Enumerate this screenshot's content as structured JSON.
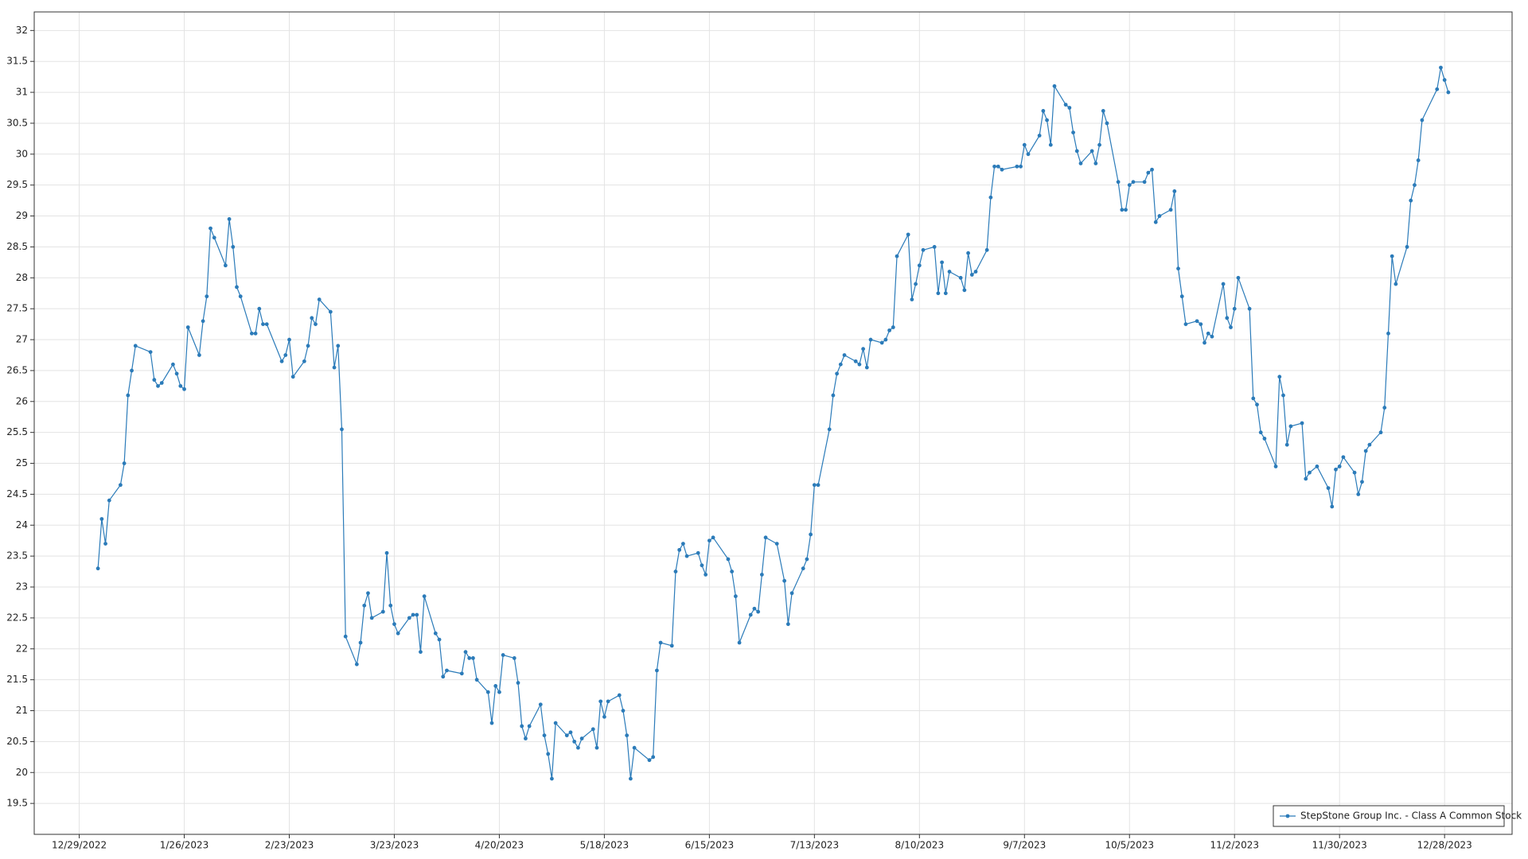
{
  "chart_data": {
    "type": "line",
    "x": [
      "1/3/2023",
      "1/4/2023",
      "1/5/2023",
      "1/6/2023",
      "1/9/2023",
      "1/10/2023",
      "1/11/2023",
      "1/12/2023",
      "1/13/2023",
      "1/17/2023",
      "1/18/2023",
      "1/19/2023",
      "1/20/2023",
      "1/23/2023",
      "1/24/2023",
      "1/25/2023",
      "1/26/2023",
      "1/27/2023",
      "1/30/2023",
      "1/31/2023",
      "2/1/2023",
      "2/2/2023",
      "2/3/2023",
      "2/6/2023",
      "2/7/2023",
      "2/8/2023",
      "2/9/2023",
      "2/10/2023",
      "2/13/2023",
      "2/14/2023",
      "2/15/2023",
      "2/16/2023",
      "2/17/2023",
      "2/21/2023",
      "2/22/2023",
      "2/23/2023",
      "2/24/2023",
      "2/27/2023",
      "2/28/2023",
      "3/1/2023",
      "3/2/2023",
      "3/3/2023",
      "3/6/2023",
      "3/7/2023",
      "3/8/2023",
      "3/9/2023",
      "3/10/2023",
      "3/13/2023",
      "3/14/2023",
      "3/15/2023",
      "3/16/2023",
      "3/17/2023",
      "3/20/2023",
      "3/21/2023",
      "3/22/2023",
      "3/23/2023",
      "3/24/2023",
      "3/27/2023",
      "3/28/2023",
      "3/29/2023",
      "3/30/2023",
      "3/31/2023",
      "4/3/2023",
      "4/4/2023",
      "4/5/2023",
      "4/6/2023",
      "4/10/2023",
      "4/11/2023",
      "4/12/2023",
      "4/13/2023",
      "4/14/2023",
      "4/17/2023",
      "4/18/2023",
      "4/19/2023",
      "4/20/2023",
      "4/21/2023",
      "4/24/2023",
      "4/25/2023",
      "4/26/2023",
      "4/27/2023",
      "4/28/2023",
      "5/1/2023",
      "5/2/2023",
      "5/3/2023",
      "5/4/2023",
      "5/5/2023",
      "5/8/2023",
      "5/9/2023",
      "5/10/2023",
      "5/11/2023",
      "5/12/2023",
      "5/15/2023",
      "5/16/2023",
      "5/17/2023",
      "5/18/2023",
      "5/19/2023",
      "5/22/2023",
      "5/23/2023",
      "5/24/2023",
      "5/25/2023",
      "5/26/2023",
      "5/30/2023",
      "5/31/2023",
      "6/1/2023",
      "6/2/2023",
      "6/5/2023",
      "6/6/2023",
      "6/7/2023",
      "6/8/2023",
      "6/9/2023",
      "6/12/2023",
      "6/13/2023",
      "6/14/2023",
      "6/15/2023",
      "6/16/2023",
      "6/20/2023",
      "6/21/2023",
      "6/22/2023",
      "6/23/2023",
      "6/26/2023",
      "6/27/2023",
      "6/28/2023",
      "6/29/2023",
      "6/30/2023",
      "7/3/2023",
      "7/5/2023",
      "7/6/2023",
      "7/7/2023",
      "7/10/2023",
      "7/11/2023",
      "7/12/2023",
      "7/13/2023",
      "7/14/2023",
      "7/17/2023",
      "7/18/2023",
      "7/19/2023",
      "7/20/2023",
      "7/21/2023",
      "7/24/2023",
      "7/25/2023",
      "7/26/2023",
      "7/27/2023",
      "7/28/2023",
      "7/31/2023",
      "8/1/2023",
      "8/2/2023",
      "8/3/2023",
      "8/4/2023",
      "8/7/2023",
      "8/8/2023",
      "8/9/2023",
      "8/10/2023",
      "8/11/2023",
      "8/14/2023",
      "8/15/2023",
      "8/16/2023",
      "8/17/2023",
      "8/18/2023",
      "8/21/2023",
      "8/22/2023",
      "8/23/2023",
      "8/24/2023",
      "8/25/2023",
      "8/28/2023",
      "8/29/2023",
      "8/30/2023",
      "8/31/2023",
      "9/1/2023",
      "9/5/2023",
      "9/6/2023",
      "9/7/2023",
      "9/8/2023",
      "9/11/2023",
      "9/12/2023",
      "9/13/2023",
      "9/14/2023",
      "9/15/2023",
      "9/18/2023",
      "9/19/2023",
      "9/20/2023",
      "9/21/2023",
      "9/22/2023",
      "9/25/2023",
      "9/26/2023",
      "9/27/2023",
      "9/28/2023",
      "9/29/2023",
      "10/2/2023",
      "10/3/2023",
      "10/4/2023",
      "10/5/2023",
      "10/6/2023",
      "10/9/2023",
      "10/10/2023",
      "10/11/2023",
      "10/12/2023",
      "10/13/2023",
      "10/16/2023",
      "10/17/2023",
      "10/18/2023",
      "10/19/2023",
      "10/20/2023",
      "10/23/2023",
      "10/24/2023",
      "10/25/2023",
      "10/26/2023",
      "10/27/2023",
      "10/30/2023",
      "10/31/2023",
      "11/1/2023",
      "11/2/2023",
      "11/3/2023",
      "11/6/2023",
      "11/7/2023",
      "11/8/2023",
      "11/9/2023",
      "11/10/2023",
      "11/13/2023",
      "11/14/2023",
      "11/15/2023",
      "11/16/2023",
      "11/17/2023",
      "11/20/2023",
      "11/21/2023",
      "11/22/2023",
      "11/24/2023",
      "11/27/2023",
      "11/28/2023",
      "11/29/2023",
      "11/30/2023",
      "12/1/2023",
      "12/4/2023",
      "12/5/2023",
      "12/6/2023",
      "12/7/2023",
      "12/8/2023",
      "12/11/2023",
      "12/12/2023",
      "12/13/2023",
      "12/14/2023",
      "12/15/2023",
      "12/18/2023",
      "12/19/2023",
      "12/20/2023",
      "12/21/2023",
      "12/22/2023",
      "12/26/2023",
      "12/27/2023",
      "12/28/2023",
      "12/29/2023"
    ],
    "series": [
      {
        "name": "StepStone Group Inc. - Class A Common Stock",
        "color": "#2b7bb9",
        "values": [
          23.3,
          24.1,
          23.7,
          24.4,
          24.65,
          25.0,
          26.1,
          26.5,
          26.9,
          26.8,
          26.35,
          26.25,
          26.3,
          26.6,
          26.45,
          26.25,
          26.2,
          27.2,
          26.75,
          27.3,
          27.7,
          28.8,
          28.65,
          28.2,
          28.95,
          28.5,
          27.85,
          27.7,
          27.1,
          27.1,
          27.5,
          27.25,
          27.25,
          26.65,
          26.75,
          27.0,
          26.4,
          26.65,
          26.9,
          27.35,
          27.25,
          27.65,
          27.45,
          26.55,
          26.9,
          25.55,
          22.2,
          21.75,
          22.1,
          22.7,
          22.9,
          22.5,
          22.6,
          23.55,
          22.7,
          22.4,
          22.25,
          22.5,
          22.55,
          22.55,
          21.95,
          22.85,
          22.25,
          22.15,
          21.55,
          21.65,
          21.6,
          21.95,
          21.85,
          21.85,
          21.5,
          21.3,
          20.8,
          21.4,
          21.3,
          21.9,
          21.85,
          21.45,
          20.75,
          20.55,
          20.75,
          21.1,
          20.6,
          20.3,
          19.9,
          20.8,
          20.6,
          20.65,
          20.5,
          20.4,
          20.55,
          20.7,
          20.4,
          21.15,
          20.9,
          21.15,
          21.25,
          21.0,
          20.6,
          19.9,
          20.4,
          20.2,
          20.25,
          21.65,
          22.1,
          22.05,
          23.25,
          23.6,
          23.7,
          23.5,
          23.55,
          23.35,
          23.2,
          23.75,
          23.8,
          23.45,
          23.25,
          22.85,
          22.1,
          22.55,
          22.65,
          22.6,
          23.2,
          23.8,
          23.7,
          23.1,
          22.4,
          22.9,
          23.3,
          23.45,
          23.85,
          24.65,
          24.65,
          25.55,
          26.1,
          26.45,
          26.6,
          26.75,
          26.65,
          26.6,
          26.85,
          26.55,
          27.0,
          26.95,
          27.0,
          27.15,
          27.2,
          28.35,
          28.7,
          27.65,
          27.9,
          28.2,
          28.45,
          28.5,
          27.75,
          28.25,
          27.75,
          28.1,
          28.0,
          27.8,
          28.4,
          28.05,
          28.1,
          28.45,
          29.3,
          29.8,
          29.8,
          29.75,
          29.8,
          29.8,
          30.15,
          30.0,
          30.3,
          30.7,
          30.55,
          30.15,
          31.1,
          30.8,
          30.75,
          30.35,
          30.05,
          29.85,
          30.05,
          29.85,
          30.15,
          30.7,
          30.5,
          29.55,
          29.1,
          29.1,
          29.5,
          29.55,
          29.55,
          29.7,
          29.75,
          28.9,
          29.0,
          29.1,
          29.4,
          28.15,
          27.7,
          27.25,
          27.3,
          27.25,
          26.95,
          27.1,
          27.05,
          27.9,
          27.35,
          27.2,
          27.5,
          28.0,
          27.5,
          26.05,
          25.95,
          25.5,
          25.4,
          24.95,
          26.4,
          26.1,
          25.3,
          25.6,
          25.65,
          24.75,
          24.85,
          24.95,
          24.6,
          24.3,
          24.9,
          24.95,
          25.1,
          24.85,
          24.5,
          24.7,
          25.2,
          25.3,
          25.5,
          25.9,
          27.1,
          28.35,
          27.9,
          28.5,
          29.25,
          29.5,
          29.9,
          30.55,
          31.05,
          31.4,
          31.2,
          31.0
        ]
      }
    ],
    "xlim": [
      "12/17/2022",
      "1/15/2024"
    ],
    "xticks": [
      "12/29/2022",
      "1/26/2023",
      "2/23/2023",
      "3/23/2023",
      "4/20/2023",
      "5/18/2023",
      "6/15/2023",
      "7/13/2023",
      "8/10/2023",
      "9/7/2023",
      "10/5/2023",
      "11/2/2023",
      "11/30/2023",
      "12/28/2023"
    ],
    "ylim": [
      19.0,
      32.3
    ],
    "yticks": [
      19.5,
      20,
      20.5,
      21,
      21.5,
      22,
      22.5,
      23,
      23.5,
      24,
      24.5,
      25,
      25.5,
      26,
      26.5,
      27,
      27.5,
      28,
      28.5,
      29,
      29.5,
      30,
      30.5,
      31,
      31.5,
      32
    ],
    "grid": true,
    "legend": "lower right"
  }
}
